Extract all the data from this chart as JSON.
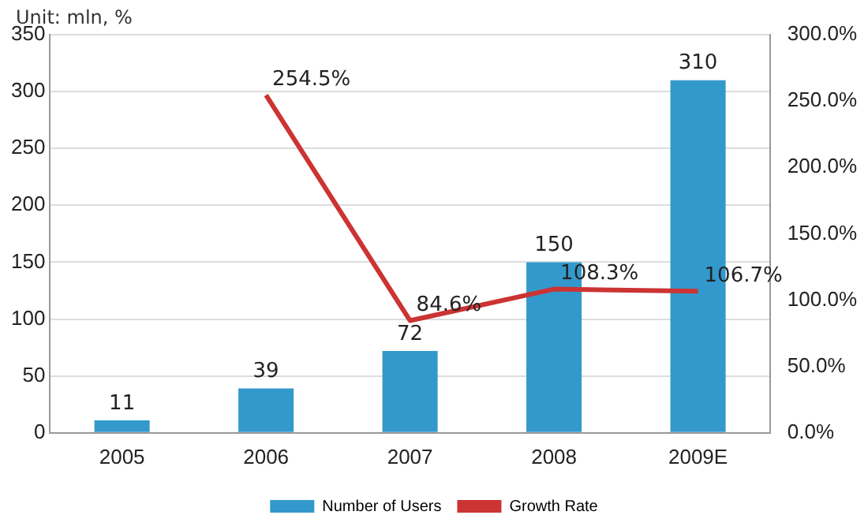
{
  "chart_data": {
    "type": "bar",
    "categories": [
      "2005",
      "2006",
      "2007",
      "2008",
      "2009E"
    ],
    "series": [
      {
        "name": "Number of Users",
        "color": "#3399cc",
        "values": [
          11,
          39,
          72,
          150,
          310
        ],
        "value_labels": [
          "11",
          "39",
          "72",
          "150",
          "310"
        ]
      },
      {
        "name": "Growth Rate",
        "type": "line",
        "axis": "y2",
        "color": "#cc3333",
        "values": [
          null,
          254.5,
          84.6,
          108.3,
          106.7
        ],
        "value_labels": [
          null,
          "254.5%",
          "84.6%",
          "108.3%",
          "106.7%"
        ]
      }
    ],
    "ylim": [
      0,
      350
    ],
    "yticks": [
      0,
      50,
      100,
      150,
      200,
      250,
      300,
      350
    ],
    "y2lim": [
      0,
      300
    ],
    "y2ticks": [
      {
        "value": 0,
        "label": "0.0%"
      },
      {
        "value": 50,
        "label": "50.0%"
      },
      {
        "value": 100,
        "label": "100.0%"
      },
      {
        "value": 150,
        "label": "150.0%"
      },
      {
        "value": 200,
        "label": "200.0%"
      },
      {
        "value": 250,
        "label": "250.0%"
      },
      {
        "value": 300,
        "label": "300.0%"
      }
    ],
    "annotations": [
      "Unit: mln, %"
    ],
    "grid": "y",
    "legend": "bottom",
    "marker": "none"
  }
}
